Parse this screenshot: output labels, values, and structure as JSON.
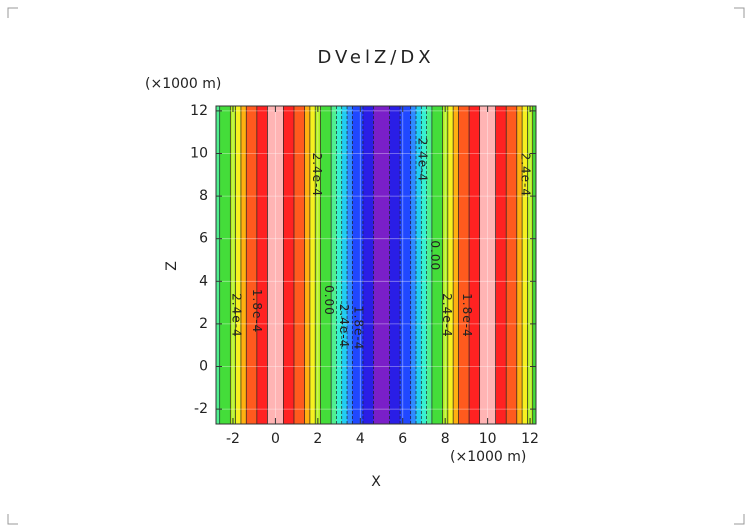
{
  "chart_data": {
    "type": "contour",
    "title": "DVelZ/DX",
    "x_label": "X",
    "y_label": "Z",
    "x_unit": "(×1000 m)",
    "y_unit": "(×1000 m)",
    "x": [
      -2.75,
      -2.5,
      -2.25,
      -2,
      -1.75,
      -1.5,
      -1.25,
      -1,
      -0.75,
      -0.5,
      -0.25,
      0,
      0.25,
      0.5,
      0.75,
      1,
      1.25,
      1.5,
      1.75,
      2,
      2.25,
      2.5,
      2.75,
      3,
      3.25,
      3.5,
      3.75,
      4,
      4.25,
      4.5,
      4.75,
      5,
      5.25,
      5.5,
      5.75,
      6,
      6.25,
      6.5,
      6.75,
      7,
      7.25,
      7.5,
      7.75,
      8,
      8.25,
      8.5,
      8.75,
      9,
      9.25,
      9.5,
      9.75,
      10,
      10.25,
      10.5,
      10.75,
      11,
      11.25,
      11.5,
      11.75,
      12,
      12.25
    ],
    "values": [
      -6.6e-05,
      0,
      6.6e-05,
      0.00013,
      0.000191,
      0.000247,
      0.000297,
      0.00034,
      0.000374,
      0.000399,
      0.000415,
      0.00042,
      0.000415,
      0.000399,
      0.000374,
      0.00034,
      0.000297,
      0.000247,
      0.000191,
      0.00013,
      6.6e-05,
      0,
      -6.6e-05,
      -0.00013,
      -0.000191,
      -0.000247,
      -0.000297,
      -0.00034,
      -0.000374,
      -0.000399,
      -0.000415,
      -0.00042,
      -0.000415,
      -0.000399,
      -0.000374,
      -0.00034,
      -0.000297,
      -0.000247,
      -0.000191,
      -0.00013,
      -6.6e-05,
      0,
      6.6e-05,
      0.00013,
      0.000191,
      0.000247,
      0.000297,
      0.00034,
      0.000374,
      0.000399,
      0.000415,
      0.00042,
      0.000415,
      0.000399,
      0.000374,
      0.00034,
      0.000297,
      0.000247,
      0.000191,
      0.00013,
      6.6e-05
    ],
    "levels": [
      -0.0004,
      -0.00035,
      -0.00028,
      -0.00021,
      -0.00014,
      -7e-05,
      0,
      7e-05,
      0.00014,
      0.00021,
      0.00028,
      0.00035,
      0.0004
    ],
    "colors": [
      "#7a1fc8",
      "#2a1ee6",
      "#2048ff",
      "#2f8cff",
      "#22cdf2",
      "#38f0d0",
      "#50f090",
      "#44dd3a",
      "#b4f020",
      "#f6f020",
      "#ffb010",
      "#ff5a1e",
      "#ff2222",
      "#ffb4b4"
    ],
    "xlim": [
      -2.8,
      12.28
    ],
    "ylim": [
      -2.7,
      12.23
    ],
    "xticks": [
      -2,
      0,
      2,
      4,
      6,
      8,
      10,
      12
    ],
    "yticks": [
      -2,
      0,
      2,
      4,
      6,
      8,
      10,
      12
    ],
    "grid": true,
    "contour_labels": [
      {
        "text": "2.4e-4",
        "x": 1.93,
        "y": 9.0
      },
      {
        "text": "2.4e-4",
        "x": 6.9,
        "y": 9.7
      },
      {
        "text": "0.00",
        "x": 7.5,
        "y": 5.2
      },
      {
        "text": "2.4e-4",
        "x": 11.75,
        "y": 9.0
      },
      {
        "text": "1.8e-4",
        "x": -0.9,
        "y": 2.6
      },
      {
        "text": "2.4e-4",
        "x": -1.85,
        "y": 2.4
      },
      {
        "text": "0.00",
        "x": 2.5,
        "y": 3.1
      },
      {
        "text": "2.4e-4",
        "x": 3.2,
        "y": 1.9
      },
      {
        "text": "1.8e-4",
        "x": 3.9,
        "y": 1.8
      },
      {
        "text": "1.8e-4",
        "x": 9.0,
        "y": 2.4
      },
      {
        "text": "2.4e-4",
        "x": 8.05,
        "y": 2.4
      }
    ]
  }
}
